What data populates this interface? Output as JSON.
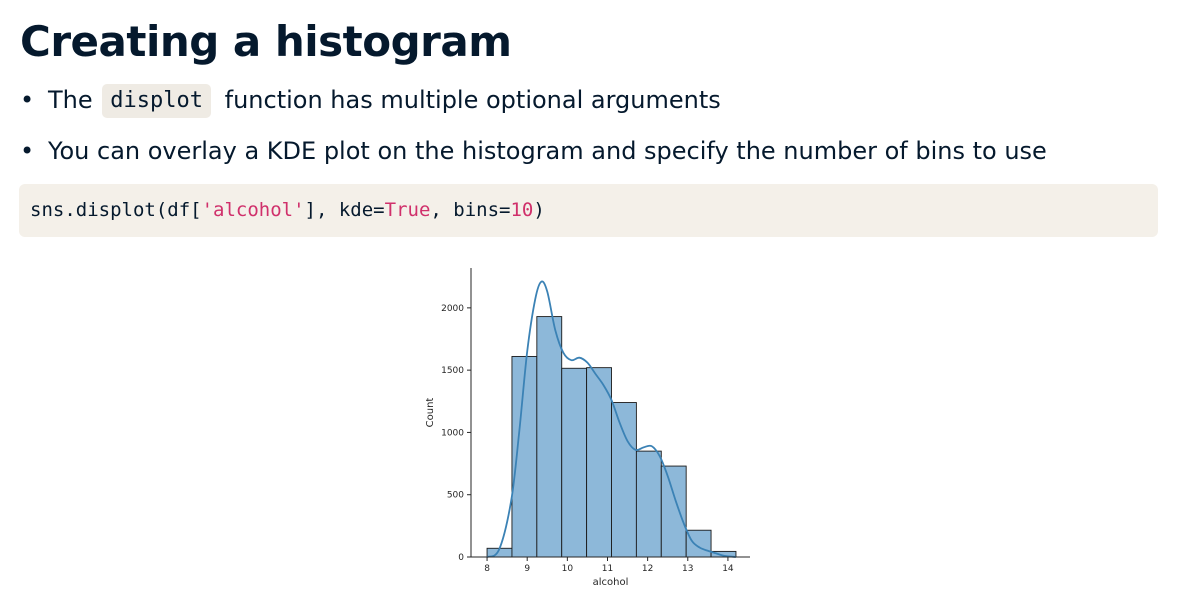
{
  "slide": {
    "title": "Creating a histogram",
    "bullets": [
      {
        "before": "The",
        "code": "displot",
        "after": "function has multiple optional arguments"
      },
      {
        "text": "You can overlay a KDE plot on the histogram and specify the number of bins to use"
      }
    ],
    "code_block": {
      "tokens": [
        {
          "text": "sns.displot(df[",
          "kind": "plain"
        },
        {
          "text": "'alcohol'",
          "kind": "str"
        },
        {
          "text": "], kde=",
          "kind": "plain"
        },
        {
          "text": "True",
          "kind": "kw"
        },
        {
          "text": ", bins=",
          "kind": "plain"
        },
        {
          "text": "10",
          "kind": "num"
        },
        {
          "text": ")",
          "kind": "plain"
        }
      ]
    }
  },
  "colors": {
    "text": "#05192d",
    "code_bg": "#f4f0e9",
    "code_highlight": "#d0306b",
    "bar_fill": "#8db8d9",
    "bar_edge": "#1a1a1a",
    "kde_line": "#3b82b5"
  },
  "chart_data": {
    "type": "bar",
    "title": "",
    "xlabel": "alcohol",
    "ylabel": "Count",
    "xlim": [
      7.6,
      14.55
    ],
    "ylim": [
      0,
      2320
    ],
    "xticks": [
      8,
      9,
      10,
      11,
      12,
      13,
      14
    ],
    "yticks": [
      0,
      500,
      1000,
      1500,
      2000
    ],
    "bins": [
      {
        "start": 8.0,
        "end": 8.62,
        "count": 70
      },
      {
        "start": 8.62,
        "end": 9.24,
        "count": 1610
      },
      {
        "start": 9.24,
        "end": 9.86,
        "count": 1930
      },
      {
        "start": 9.86,
        "end": 10.48,
        "count": 1515
      },
      {
        "start": 10.48,
        "end": 11.1,
        "count": 1520
      },
      {
        "start": 11.1,
        "end": 11.72,
        "count": 1240
      },
      {
        "start": 11.72,
        "end": 12.34,
        "count": 850
      },
      {
        "start": 12.34,
        "end": 12.96,
        "count": 730
      },
      {
        "start": 12.96,
        "end": 13.58,
        "count": 215
      },
      {
        "start": 13.58,
        "end": 14.2,
        "count": 45
      }
    ],
    "kde": {
      "x": [
        8.0,
        8.3,
        8.6,
        8.8,
        9.0,
        9.2,
        9.35,
        9.5,
        9.7,
        9.9,
        10.1,
        10.3,
        10.5,
        10.7,
        10.9,
        11.1,
        11.3,
        11.5,
        11.7,
        11.9,
        12.1,
        12.3,
        12.5,
        12.7,
        12.9,
        13.1,
        13.3,
        13.5,
        13.7,
        13.9,
        14.2
      ],
      "y": [
        0,
        60,
        450,
        1000,
        1650,
        2070,
        2210,
        2130,
        1820,
        1640,
        1580,
        1600,
        1560,
        1470,
        1380,
        1260,
        1080,
        930,
        860,
        880,
        890,
        810,
        650,
        450,
        270,
        130,
        75,
        50,
        30,
        10,
        0
      ]
    },
    "grid": false,
    "legend": "none"
  }
}
